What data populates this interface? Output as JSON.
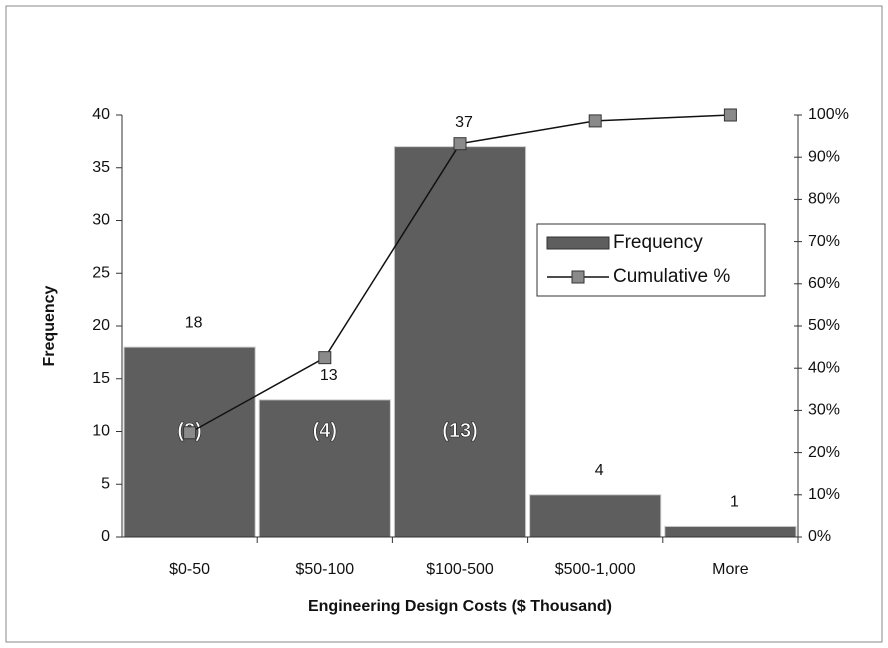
{
  "chart_data": {
    "type": "bar",
    "x_label": "Engineering Design Costs ($ Thousand)",
    "y_label": "Frequency",
    "categories": [
      "$0-50",
      "$50-100",
      "$100-500",
      "$500-1,000",
      "More"
    ],
    "series": [
      {
        "name": "Frequency",
        "type": "bar",
        "color": "#5e5e5e",
        "values": [
          18,
          13,
          37,
          4,
          1
        ]
      },
      {
        "name": "Cumulative %",
        "type": "line",
        "axis": "y2",
        "color": "#111111",
        "marker_color": "#8a8a8a",
        "values": [
          24.7,
          42.5,
          93.2,
          98.6,
          100
        ]
      }
    ],
    "show_bar_values": true,
    "annotations": [
      {
        "category": "$0-50",
        "text": "(8)"
      },
      {
        "category": "$50-100",
        "text": "(4)"
      },
      {
        "category": "$100-500",
        "text": "(13)"
      }
    ],
    "ylim": [
      0,
      40
    ],
    "yticks": [
      0,
      5,
      10,
      15,
      20,
      25,
      30,
      35,
      40
    ],
    "y2lim": [
      0,
      100
    ],
    "y2ticks": [
      {
        "value": 0,
        "label": "0%"
      },
      {
        "value": 10,
        "label": "10%"
      },
      {
        "value": 20,
        "label": "20%"
      },
      {
        "value": 30,
        "label": "30%"
      },
      {
        "value": 40,
        "label": "40%"
      },
      {
        "value": 50,
        "label": "50%"
      },
      {
        "value": 60,
        "label": "60%"
      },
      {
        "value": 70,
        "label": "70%"
      },
      {
        "value": 80,
        "label": "80%"
      },
      {
        "value": 90,
        "label": "90%"
      },
      {
        "value": 100,
        "label": "100%"
      }
    ],
    "legend": "right"
  }
}
